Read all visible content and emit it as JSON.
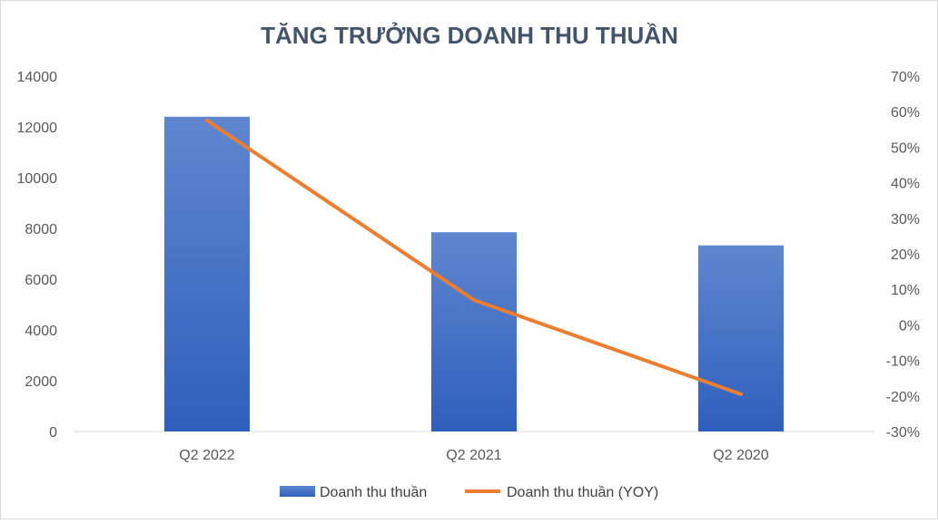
{
  "chart_data": {
    "type": "bar",
    "title": "TĂNG TRƯỞNG DOANH THU THUẦN",
    "categories": [
      "Q2 2022",
      "Q2 2021",
      "Q2 2020"
    ],
    "series": [
      {
        "name": "Doanh thu thuần",
        "type": "bar",
        "axis": "left",
        "color": "#4472c4",
        "values": [
          12400,
          7850,
          7330
        ]
      },
      {
        "name": "Doanh thu thuần (YOY)",
        "type": "line",
        "axis": "right",
        "color": "#ed7d31",
        "values": [
          0.575,
          0.07,
          -0.195
        ]
      }
    ],
    "y_left": {
      "min": 0,
      "max": 14000,
      "step": 2000,
      "ticks": [
        "0",
        "2000",
        "4000",
        "6000",
        "8000",
        "10000",
        "12000",
        "14000"
      ]
    },
    "y_right": {
      "min": -0.3,
      "max": 0.7,
      "step": 0.1,
      "ticks": [
        "-30%",
        "-20%",
        "-10%",
        "0%",
        "10%",
        "20%",
        "30%",
        "40%",
        "50%",
        "60%",
        "70%"
      ]
    },
    "grid": false,
    "legend": "bottom-center"
  }
}
